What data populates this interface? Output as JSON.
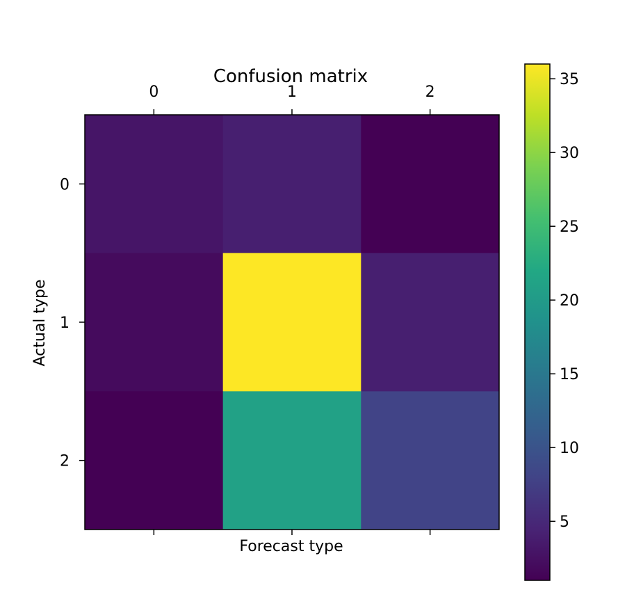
{
  "chart_data": {
    "type": "heatmap",
    "title": "Confusion matrix",
    "xlabel": "Forecast type",
    "ylabel": "Actual type",
    "x_categories": [
      "0",
      "1",
      "2"
    ],
    "y_categories": [
      "0",
      "1",
      "2"
    ],
    "values": [
      [
        3,
        4,
        1
      ],
      [
        2,
        36,
        4
      ],
      [
        1,
        21,
        8
      ]
    ],
    "colormap": "viridis",
    "color_range": [
      1,
      36
    ],
    "colorbar_ticks": [
      5,
      10,
      15,
      20,
      25,
      30,
      35
    ],
    "colorbar_tick_labels": [
      "5",
      "10",
      "15",
      "20",
      "25",
      "30",
      "35"
    ],
    "x_ticks_position": "top",
    "grid": false
  }
}
